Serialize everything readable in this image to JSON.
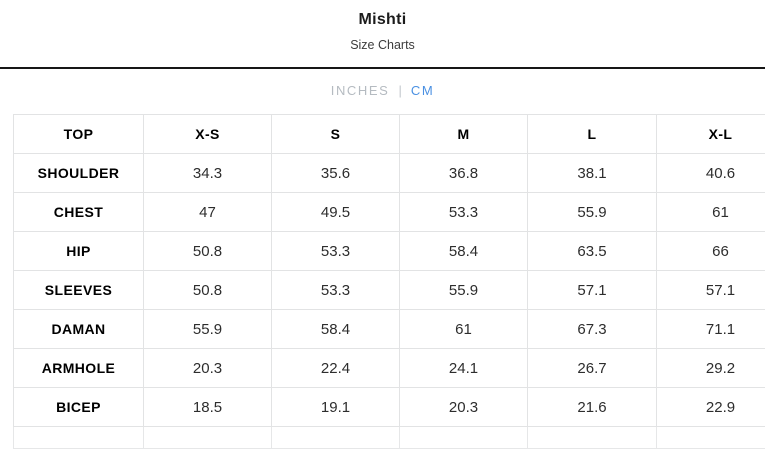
{
  "header": {
    "title": "Mishti",
    "subtitle": "Size Charts"
  },
  "unit_toggle": {
    "inches_label": "INCHES",
    "separator": "|",
    "cm_label": "CM",
    "active_unit": "CM",
    "active_color": "#4a90e2",
    "inactive_color": "#b5bbc1"
  },
  "colors": {
    "divider": "#161616",
    "table_border": "#e2e3e4",
    "header_text": "#000000",
    "value_text": "#2d2d2d"
  },
  "chart_data": {
    "type": "table",
    "title": "Mishti Size Charts (CM)",
    "columns": [
      "TOP",
      "X-S",
      "S",
      "M",
      "L",
      "X-L"
    ],
    "rows": [
      {
        "label": "SHOULDER",
        "values": [
          "34.3",
          "35.6",
          "36.8",
          "38.1",
          "40.6"
        ]
      },
      {
        "label": "CHEST",
        "values": [
          "47",
          "49.5",
          "53.3",
          "55.9",
          "61"
        ]
      },
      {
        "label": "HIP",
        "values": [
          "50.8",
          "53.3",
          "58.4",
          "63.5",
          "66"
        ]
      },
      {
        "label": "SLEEVES",
        "values": [
          "50.8",
          "53.3",
          "55.9",
          "57.1",
          "57.1"
        ]
      },
      {
        "label": "DAMAN",
        "values": [
          "55.9",
          "58.4",
          "61",
          "67.3",
          "71.1"
        ]
      },
      {
        "label": "ARMHOLE",
        "values": [
          "20.3",
          "22.4",
          "24.1",
          "26.7",
          "29.2"
        ]
      },
      {
        "label": "BICEP",
        "values": [
          "18.5",
          "19.1",
          "20.3",
          "21.6",
          "22.9"
        ]
      }
    ],
    "has_trailing_empty_row": true
  }
}
